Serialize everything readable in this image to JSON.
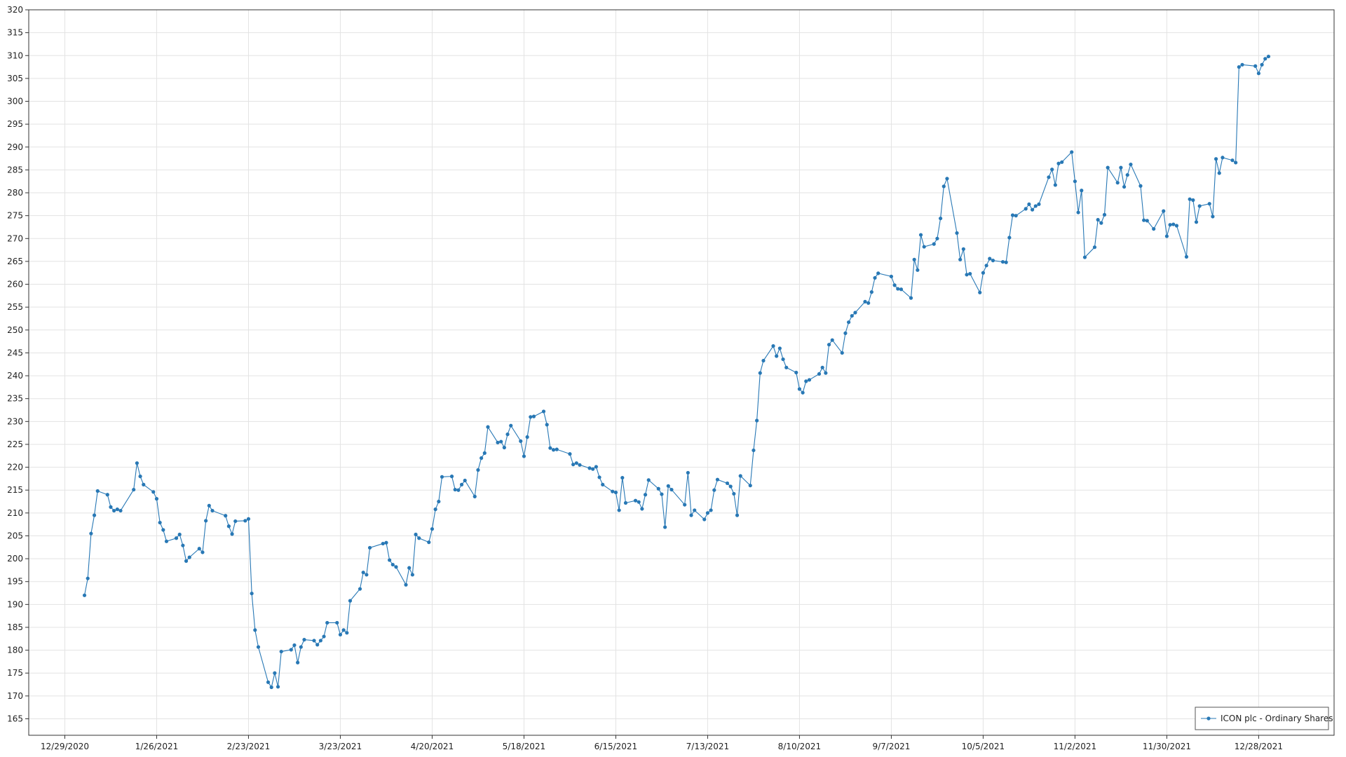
{
  "chart_data": {
    "type": "line",
    "x": [
      "1/4/2021",
      "1/5/2021",
      "1/6/2021",
      "1/7/2021",
      "1/8/2021",
      "1/11/2021",
      "1/12/2021",
      "1/13/2021",
      "1/14/2021",
      "1/15/2021",
      "1/19/2021",
      "1/20/2021",
      "1/21/2021",
      "1/22/2021",
      "1/25/2021",
      "1/26/2021",
      "1/27/2021",
      "1/28/2021",
      "1/29/2021",
      "2/1/2021",
      "2/2/2021",
      "2/3/2021",
      "2/4/2021",
      "2/5/2021",
      "2/8/2021",
      "2/9/2021",
      "2/10/2021",
      "2/11/2021",
      "2/12/2021",
      "2/16/2021",
      "2/17/2021",
      "2/18/2021",
      "2/19/2021",
      "2/22/2021",
      "2/23/2021",
      "2/24/2021",
      "2/25/2021",
      "2/26/2021",
      "3/1/2021",
      "3/2/2021",
      "3/3/2021",
      "3/4/2021",
      "3/5/2021",
      "3/8/2021",
      "3/9/2021",
      "3/10/2021",
      "3/11/2021",
      "3/12/2021",
      "3/15/2021",
      "3/16/2021",
      "3/17/2021",
      "3/18/2021",
      "3/19/2021",
      "3/22/2021",
      "3/23/2021",
      "3/24/2021",
      "3/25/2021",
      "3/26/2021",
      "3/29/2021",
      "3/30/2021",
      "3/31/2021",
      "4/1/2021",
      "4/5/2021",
      "4/6/2021",
      "4/7/2021",
      "4/8/2021",
      "4/9/2021",
      "4/12/2021",
      "4/13/2021",
      "4/14/2021",
      "4/15/2021",
      "4/16/2021",
      "4/19/2021",
      "4/20/2021",
      "4/21/2021",
      "4/22/2021",
      "4/23/2021",
      "4/26/2021",
      "4/27/2021",
      "4/28/2021",
      "4/29/2021",
      "4/30/2021",
      "5/3/2021",
      "5/4/2021",
      "5/5/2021",
      "5/6/2021",
      "5/7/2021",
      "5/10/2021",
      "5/11/2021",
      "5/12/2021",
      "5/13/2021",
      "5/14/2021",
      "5/17/2021",
      "5/18/2021",
      "5/19/2021",
      "5/20/2021",
      "5/21/2021",
      "5/24/2021",
      "5/25/2021",
      "5/26/2021",
      "5/27/2021",
      "5/28/2021",
      "6/1/2021",
      "6/2/2021",
      "6/3/2021",
      "6/4/2021",
      "6/7/2021",
      "6/8/2021",
      "6/9/2021",
      "6/10/2021",
      "6/11/2021",
      "6/14/2021",
      "6/15/2021",
      "6/16/2021",
      "6/17/2021",
      "6/18/2021",
      "6/21/2021",
      "6/22/2021",
      "6/23/2021",
      "6/24/2021",
      "6/25/2021",
      "6/28/2021",
      "6/29/2021",
      "6/30/2021",
      "7/1/2021",
      "7/2/2021",
      "7/6/2021",
      "7/7/2021",
      "7/8/2021",
      "7/9/2021",
      "7/12/2021",
      "7/13/2021",
      "7/14/2021",
      "7/15/2021",
      "7/16/2021",
      "7/19/2021",
      "7/20/2021",
      "7/21/2021",
      "7/22/2021",
      "7/23/2021",
      "7/26/2021",
      "7/27/2021",
      "7/28/2021",
      "7/29/2021",
      "7/30/2021",
      "8/2/2021",
      "8/3/2021",
      "8/4/2021",
      "8/5/2021",
      "8/6/2021",
      "8/9/2021",
      "8/10/2021",
      "8/11/2021",
      "8/12/2021",
      "8/13/2021",
      "8/16/2021",
      "8/17/2021",
      "8/18/2021",
      "8/19/2021",
      "8/20/2021",
      "8/23/2021",
      "8/24/2021",
      "8/25/2021",
      "8/26/2021",
      "8/27/2021",
      "8/30/2021",
      "8/31/2021",
      "9/1/2021",
      "9/2/2021",
      "9/3/2021",
      "9/7/2021",
      "9/8/2021",
      "9/9/2021",
      "9/10/2021",
      "9/13/2021",
      "9/14/2021",
      "9/15/2021",
      "9/16/2021",
      "9/17/2021",
      "9/20/2021",
      "9/21/2021",
      "9/22/2021",
      "9/23/2021",
      "9/24/2021",
      "9/27/2021",
      "9/28/2021",
      "9/29/2021",
      "9/30/2021",
      "10/1/2021",
      "10/4/2021",
      "10/5/2021",
      "10/6/2021",
      "10/7/2021",
      "10/8/2021",
      "10/11/2021",
      "10/12/2021",
      "10/13/2021",
      "10/14/2021",
      "10/15/2021",
      "10/18/2021",
      "10/19/2021",
      "10/20/2021",
      "10/21/2021",
      "10/22/2021",
      "10/25/2021",
      "10/26/2021",
      "10/27/2021",
      "10/28/2021",
      "10/29/2021",
      "11/1/2021",
      "11/2/2021",
      "11/3/2021",
      "11/4/2021",
      "11/5/2021",
      "11/8/2021",
      "11/9/2021",
      "11/10/2021",
      "11/11/2021",
      "11/12/2021",
      "11/15/2021",
      "11/16/2021",
      "11/17/2021",
      "11/18/2021",
      "11/19/2021",
      "11/22/2021",
      "11/23/2021",
      "11/24/2021",
      "11/26/2021",
      "11/29/2021",
      "11/30/2021",
      "12/1/2021",
      "12/2/2021",
      "12/3/2021",
      "12/6/2021",
      "12/7/2021",
      "12/8/2021",
      "12/9/2021",
      "12/10/2021",
      "12/13/2021",
      "12/14/2021",
      "12/15/2021",
      "12/16/2021",
      "12/17/2021",
      "12/20/2021",
      "12/21/2021",
      "12/22/2021",
      "12/23/2021",
      "12/27/2021",
      "12/28/2021",
      "12/29/2021",
      "12/30/2021",
      "12/31/2021"
    ],
    "series": [
      {
        "name": "ICON plc - Ordinary Shares",
        "color": "#2878b5",
        "values": [
          192,
          195.7,
          205.5,
          209.5,
          214.8,
          214,
          211.3,
          210.5,
          210.8,
          210.5,
          215.1,
          220.9,
          218,
          216.2,
          214.6,
          213.1,
          207.9,
          206.3,
          203.8,
          204.5,
          205.3,
          202.9,
          199.5,
          200.3,
          202.2,
          201.4,
          208.3,
          211.6,
          210.5,
          209.4,
          207.1,
          205.4,
          208.2,
          208.3,
          208.7,
          192.4,
          184.4,
          180.7,
          173,
          171.9,
          175,
          172,
          179.7,
          180.1,
          181.1,
          177.3,
          180.7,
          182.3,
          182.1,
          181.2,
          182.1,
          183,
          186,
          186,
          183.4,
          184.4,
          183.8,
          190.8,
          193.4,
          197,
          196.5,
          202.4,
          203.3,
          203.5,
          199.7,
          198.7,
          198.2,
          194.3,
          198,
          196.5,
          205.3,
          204.5,
          203.6,
          206.5,
          210.8,
          212.5,
          217.9,
          218,
          215.1,
          215,
          216.2,
          217.1,
          213.6,
          219.4,
          222,
          223.1,
          228.8,
          225.4,
          225.6,
          224.3,
          227.2,
          229.1,
          225.7,
          222.4,
          226.6,
          231,
          231.1,
          232.2,
          229.3,
          224.2,
          223.8,
          223.9,
          222.9,
          220.6,
          220.9,
          220.5,
          219.8,
          219.6,
          220.1,
          217.8,
          216.2,
          214.7,
          214.5,
          210.6,
          217.7,
          212.2,
          212.7,
          212.4,
          210.9,
          214,
          217.2,
          215.3,
          214.1,
          206.9,
          215.9,
          215.1,
          211.8,
          218.8,
          209.5,
          210.6,
          208.6,
          210,
          210.6,
          215,
          217.3,
          216.5,
          215.8,
          214.2,
          209.5,
          218.1,
          216,
          223.7,
          230.2,
          240.6,
          243.3,
          246.5,
          244.3,
          246,
          243.6,
          241.8,
          240.7,
          237.1,
          236.3,
          238.8,
          239.1,
          240.4,
          241.8,
          240.6,
          246.8,
          247.8,
          245,
          249.3,
          251.7,
          253.1,
          253.8,
          256.2,
          255.9,
          258.3,
          261.4,
          262.4,
          261.7,
          259.8,
          259,
          258.9,
          257,
          265.4,
          263.1,
          270.8,
          268.2,
          268.8,
          270,
          274.4,
          281.4,
          283.1,
          271.2,
          265.4,
          267.7,
          262.1,
          262.3,
          258.2,
          262.5,
          264.1,
          265.6,
          265.2,
          264.9,
          264.8,
          270.2,
          275.1,
          275,
          276.5,
          277.5,
          276.3,
          277.1,
          277.5,
          283.4,
          285.1,
          281.7,
          286.4,
          286.7,
          288.9,
          282.5,
          275.7,
          280.5,
          265.9,
          268.1,
          274.1,
          273.4,
          275.2,
          285.5,
          282.2,
          285.5,
          281.3,
          283.9,
          286.2,
          281.5,
          274,
          273.9,
          272.1,
          276,
          270.5,
          273,
          273.1,
          272.8,
          266,
          278.6,
          278.4,
          273.6,
          277.1,
          277.6,
          274.8,
          287.4,
          284.3,
          287.7,
          287.1,
          286.6,
          307.5,
          308,
          307.7,
          306.1,
          308,
          309.3,
          309.8
        ]
      }
    ],
    "xlim": [
      "12/18/2020",
      "1/20/2022"
    ],
    "xticks": [
      "12/29/2020",
      "1/26/2021",
      "2/23/2021",
      "3/23/2021",
      "4/20/2021",
      "5/18/2021",
      "6/15/2021",
      "7/13/2021",
      "8/10/2021",
      "9/7/2021",
      "10/5/2021",
      "11/2/2021",
      "11/30/2021",
      "12/28/2021"
    ],
    "ylim": [
      161.4,
      320
    ],
    "yticks": [
      165,
      170,
      175,
      180,
      185,
      190,
      195,
      200,
      205,
      210,
      215,
      220,
      225,
      230,
      235,
      240,
      245,
      250,
      255,
      260,
      265,
      270,
      275,
      280,
      285,
      290,
      295,
      300,
      305,
      310,
      315,
      320
    ],
    "grid": true,
    "legend": "lower right"
  }
}
